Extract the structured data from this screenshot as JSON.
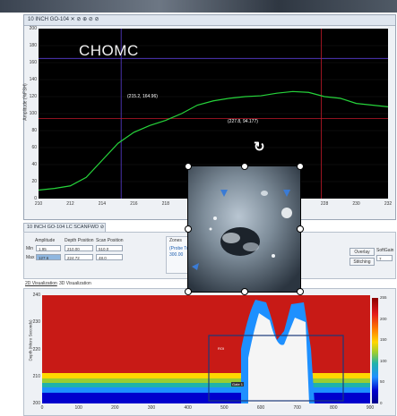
{
  "top_window": {
    "title": "10 INCH GO-104 ✕ ⊘ ⊕ ⊘ ⊘",
    "watermark": "CHOMC",
    "y_axis_label": "Amplitude (%FSH)",
    "y_ticks": [
      "200",
      "180",
      "160",
      "140",
      "120",
      "100",
      "80",
      "60",
      "40",
      "20",
      "0"
    ],
    "x_ticks": [
      "210",
      "212",
      "214",
      "216",
      "218",
      "220",
      "222",
      "224",
      "226",
      "228",
      "230",
      "232"
    ],
    "cursor_label_a": "(215.2, 164.96)",
    "cursor_label_b": "(227.8, 94.177)"
  },
  "amplitude_chart": {
    "type": "line",
    "series": [
      {
        "name": "",
        "color": "#26d43b",
        "points": [
          [
            210,
            10
          ],
          [
            211,
            12
          ],
          [
            212,
            15
          ],
          [
            213,
            25
          ],
          [
            214,
            45
          ],
          [
            215,
            65
          ],
          [
            216,
            78
          ],
          [
            217,
            86
          ],
          [
            218,
            92
          ],
          [
            219,
            100
          ],
          [
            220,
            110
          ],
          [
            221,
            115
          ],
          [
            222,
            118
          ],
          [
            223,
            120
          ],
          [
            224,
            121
          ],
          [
            225,
            124
          ],
          [
            226,
            126
          ],
          [
            227,
            125
          ],
          [
            228,
            120
          ],
          [
            229,
            118
          ],
          [
            230,
            112
          ],
          [
            231,
            110
          ],
          [
            232,
            108
          ]
        ]
      }
    ],
    "x_range": [
      210,
      232
    ],
    "y_range": [
      0,
      200
    ],
    "cursor_a": {
      "x": 215.2,
      "y": 164.96,
      "color": "#5b3fd6"
    },
    "cursor_b": {
      "x": 227.8,
      "y": 94.177,
      "color": "#c0192a"
    }
  },
  "bottom_tab": {
    "title": "10 INCH GO-104 LC SCANFWD ⊘"
  },
  "readout": {
    "amplitude_label": "Amplitude",
    "depth_label": "Depth Position",
    "scan_label": "Scan Position",
    "min_label": "Min",
    "max_label": "Max",
    "min_amplitude": "1.95",
    "min_depth": "210.00",
    "min_scan": "510.0",
    "max_amplitude": "127.6",
    "max_depth": "224.72",
    "max_scan": "48.0"
  },
  "zone": {
    "label": "Zones",
    "probe_label": "(Probe Tr",
    "value": "300.00"
  },
  "buttons": {
    "overlay": "Overlay",
    "stitching": "Stitching",
    "softgain_label": "SoftGain",
    "softgain_value": "7"
  },
  "viz_tabs": {
    "tab_2d": "2D Visualization",
    "tab_3d": "3D Visualization"
  },
  "heatmap": {
    "y_axis_label": "Depth (Micro Seconds)",
    "y_ticks": [
      "240",
      "230",
      "220",
      "210",
      "200"
    ],
    "x_ticks": [
      "0",
      "100",
      "200",
      "300",
      "400",
      "500",
      "600",
      "700",
      "800",
      "900"
    ],
    "colorbar_ticks": [
      "255",
      "200",
      "150",
      "100",
      "50",
      "0"
    ],
    "roi_label": "ROI",
    "inner_label": "Gate 1"
  }
}
